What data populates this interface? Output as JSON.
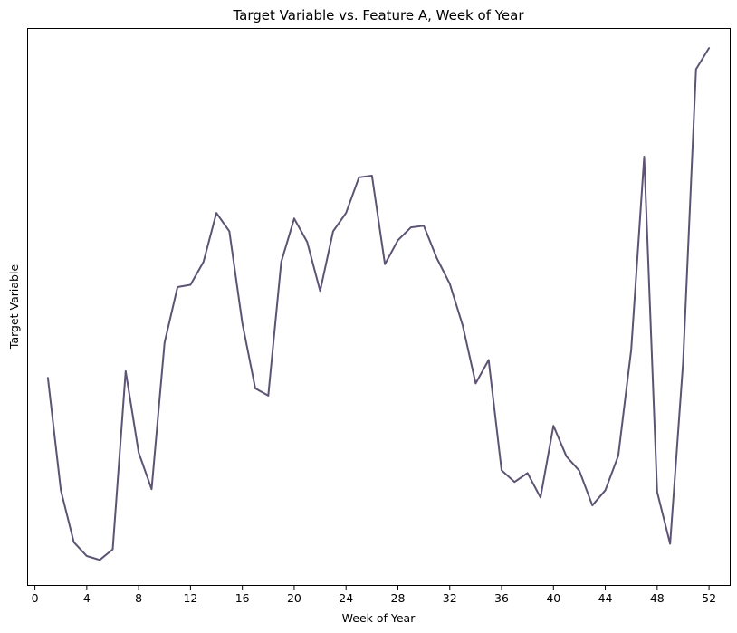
{
  "chart_data": {
    "type": "line",
    "title": "Target Variable vs. Feature A, Week of Year",
    "xlabel": "Week of Year",
    "ylabel": "Target Variable",
    "xlim": [
      -0.6,
      53.6
    ],
    "ylim": [
      0.0,
      1.0
    ],
    "xticks": [
      0,
      4,
      8,
      12,
      16,
      20,
      24,
      28,
      32,
      36,
      40,
      44,
      48,
      52
    ],
    "xtick_labels": [
      "0",
      "4",
      "8",
      "12",
      "16",
      "20",
      "24",
      "28",
      "32",
      "36",
      "40",
      "44",
      "48",
      "52"
    ],
    "yticks_visible": false,
    "grid": false,
    "line_color": "#5d5374",
    "series": [
      {
        "x": [
          1,
          2,
          3,
          4,
          5,
          6,
          7,
          8,
          9,
          10,
          11,
          12,
          13,
          14,
          15,
          16,
          17,
          18,
          19,
          20,
          21,
          22,
          23,
          24,
          25,
          26,
          27,
          28,
          29,
          30,
          31,
          32,
          33,
          34,
          35,
          36,
          37,
          38,
          39,
          40,
          41,
          42,
          43,
          44,
          45,
          46,
          47,
          48,
          49,
          50,
          51,
          52
        ],
        "values": [
          0.372,
          0.17,
          0.077,
          0.052,
          0.045,
          0.064,
          0.384,
          0.238,
          0.172,
          0.435,
          0.535,
          0.539,
          0.58,
          0.668,
          0.635,
          0.47,
          0.353,
          0.34,
          0.58,
          0.658,
          0.616,
          0.528,
          0.635,
          0.668,
          0.732,
          0.735,
          0.576,
          0.619,
          0.642,
          0.645,
          0.587,
          0.541,
          0.466,
          0.362,
          0.404,
          0.206,
          0.185,
          0.201,
          0.157,
          0.286,
          0.231,
          0.205,
          0.143,
          0.17,
          0.232,
          0.423,
          0.769,
          0.167,
          0.074,
          0.399,
          0.926,
          0.964
        ]
      }
    ]
  }
}
